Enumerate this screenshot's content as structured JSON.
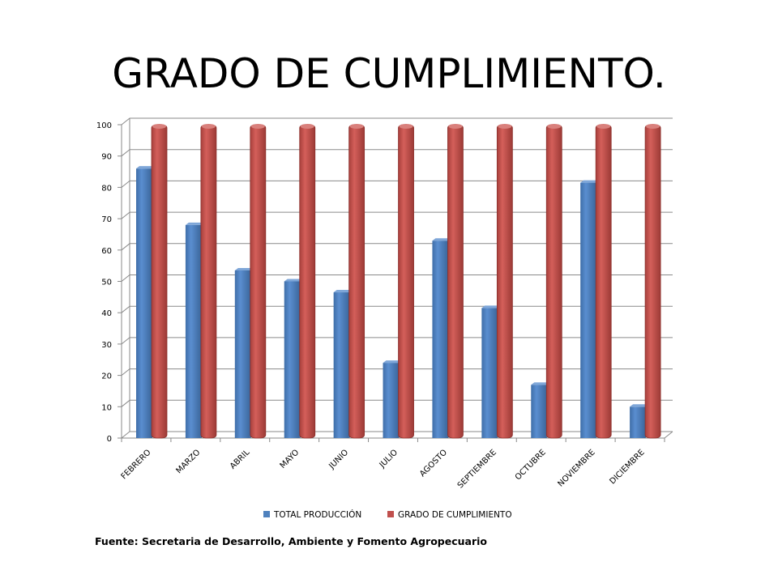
{
  "title": "GRADO DE CUMPLIMIENTO.",
  "source": "Fuente: Secretaria de Desarrollo, Ambiente y Fomento Agropecuario",
  "chart_data": {
    "type": "bar",
    "style": "3d-clustered-column",
    "categories": [
      "FEBRERO",
      "MARZO",
      "ABRIL",
      "MAYO",
      "JUNIO",
      "JULIO",
      "AGOSTO",
      "SEPTIEMBRE",
      "OCTUBRE",
      "NOVIEMBRE",
      "DICIEMBRE"
    ],
    "series": [
      {
        "name": "TOTAL PRODUCCIÓN",
        "color": "#4F81BD",
        "values": [
          86,
          68,
          53.5,
          50,
          46.5,
          24,
          63,
          41.5,
          17,
          81.5,
          10
        ]
      },
      {
        "name": "GRADO DE CUMPLIMIENTO",
        "color": "#C0504D",
        "values": [
          100,
          100,
          100,
          100,
          100,
          100,
          100,
          100,
          100,
          100,
          100
        ]
      }
    ],
    "yticks": [
      "0",
      "10",
      "20",
      "30",
      "40",
      "50",
      "60",
      "70",
      "80",
      "90",
      "100"
    ],
    "ylim": [
      0,
      100
    ],
    "grid": true,
    "legend": "bottom"
  }
}
